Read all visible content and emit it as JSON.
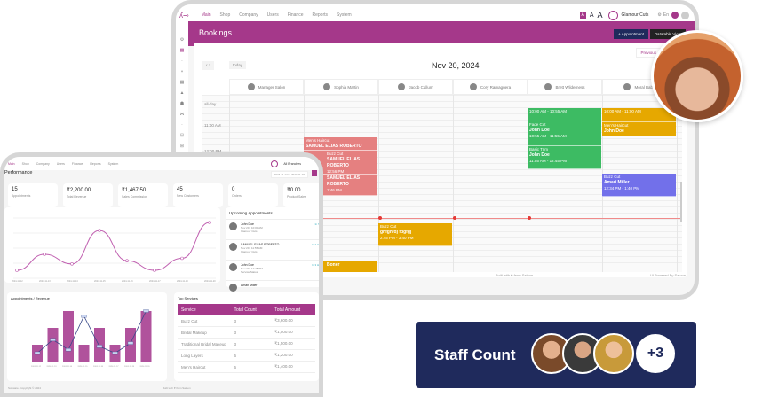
{
  "back": {
    "nav": [
      "Main",
      "Shop",
      "Company",
      "Users",
      "Finance",
      "Reports",
      "System"
    ],
    "font_sizes": [
      "A",
      "A",
      "A"
    ],
    "branch": "Glamour Cuts",
    "lang": "En",
    "title": "Bookings",
    "add_btn": "+ Appointment",
    "table_btn": "Datatable View",
    "prev_btn": "Previous",
    "today_btn": "today",
    "date": "Nov 20, 2024",
    "staff": [
      "Manager Salon",
      "Sophia Martin",
      "Jacob Callum",
      "Cory Ramaguera",
      "Brett Wilderness",
      "Moral Babu"
    ],
    "times": [
      "all-day",
      "11:00 AM",
      "12:00 PM"
    ],
    "events": [
      {
        "service": "",
        "name": "",
        "time": "10:00 AM - 10:55 AM",
        "color": "#3dbb63"
      },
      {
        "service": "Fade Cut",
        "name": "John Doe",
        "time": "10:55 AM - 11:55 AM",
        "color": "#3dbb63"
      },
      {
        "service": "Basic Trim",
        "name": "John Doe",
        "time": "11:55 AM - 12:45 PM",
        "color": "#3dbb63"
      },
      {
        "service": "",
        "name": "",
        "time": "10:00 AM - 11:00 AM",
        "color": "#e6a800"
      },
      {
        "service": "Men's Haircut",
        "name": "John Doe",
        "time": "",
        "color": "#e6a800"
      },
      {
        "service": "Men's Haircut",
        "name": "SAMUEL ELIAS ROBERTO",
        "time": "",
        "color": "#e58080"
      },
      {
        "service": "Buzz Cut",
        "name": "SAMUEL ELIAS ROBERTO",
        "time": "12:56 PM",
        "color": "#e58080"
      },
      {
        "service": "",
        "name": "SAMUEL ELIAS ROBERTO",
        "time": "1:46 PM",
        "color": "#e58080"
      },
      {
        "service": "Buzz Cut",
        "name": "Amari Miller",
        "time": "12:34 PM - 1:40 PM",
        "color": "#7270ea"
      },
      {
        "service": "Buzz Cut",
        "name": "ghfghfdj fdgfgj",
        "time": "2:45 PM - 3:40 PM",
        "color": "#e6a800"
      },
      {
        "service": "",
        "name": "Boner",
        "time": "",
        "color": "#e6a800"
      }
    ],
    "footer_mid": "Built with ♥ from Saloon",
    "footer_right": "UI Powered By Saloon"
  },
  "front": {
    "nav": [
      "Main",
      "Shop",
      "Company",
      "Users",
      "Finance",
      "Reports",
      "System"
    ],
    "branch": "All Branches",
    "title": "Performance",
    "date_range": "2024-11-14 to 2024-11-20",
    "stats": [
      {
        "value": "15",
        "label": "Appointments"
      },
      {
        "value": "₹2,200.00",
        "label": "Total Revenue"
      },
      {
        "value": "₹1,467.50",
        "label": "Sales Commission"
      },
      {
        "value": "45",
        "label": "New Customers"
      },
      {
        "value": "0",
        "label": "Orders"
      },
      {
        "value": "₹0.00",
        "label": "Product Sales"
      }
    ],
    "upcoming_title": "Upcoming Appointments",
    "upcoming": [
      {
        "name": "John Doe",
        "meta": "Nov 20 | 10:00 AM",
        "sub": "Glamour Cuts",
        "badge": "In Shop"
      },
      {
        "name": "SAMUEL ELIAS ROBERTO",
        "meta": "Nov 20 | 11:55 AM",
        "sub": "Glamour Cuts",
        "badge": "In 2 Hours"
      },
      {
        "name": "John Doe",
        "meta": "Nov 20 | 12:45 PM",
        "sub": "Service Status",
        "badge": "In 3 Hours"
      },
      {
        "name": "Amari Miller",
        "meta": "",
        "sub": "",
        "badge": ""
      }
    ],
    "line_chart": {
      "x": [
        "2024-11-12",
        "2024-11-13",
        "2024-11-14",
        "2024-11-15",
        "2024-11-16",
        "2024-11-17",
        "2024-11-19",
        "2024-11-20"
      ],
      "y": [
        1,
        3,
        1.8,
        6,
        2.2,
        1,
        2.5,
        7
      ]
    },
    "bar_title": "Appointments / Revenue",
    "bar_chart": {
      "x": [
        "2024-11-12",
        "2024-11-13",
        "2024-11-14",
        "2024-11-15",
        "2024-11-16",
        "2024-11-17",
        "2024-11-19",
        "2024-11-20"
      ],
      "bars": [
        1,
        2,
        3,
        1,
        2,
        1,
        2,
        3
      ],
      "line": [
        0.5,
        1.3,
        0.7,
        2.7,
        0.9,
        0.5,
        1.1,
        3
      ]
    },
    "services_title": "Top Services",
    "services_headers": [
      "Service",
      "Total Count",
      "Total Amount"
    ],
    "services": [
      [
        "Buzz Cut",
        "3",
        "₹3,600.00"
      ],
      [
        "Bridal Makeup",
        "3",
        "₹1,500.00"
      ],
      [
        "Traditional Bridal Makeup",
        "3",
        "₹1,500.00"
      ],
      [
        "Long Layers",
        "6",
        "₹1,200.00"
      ],
      [
        "Men's Haircut",
        "6",
        "₹1,400.00"
      ]
    ],
    "footer_left": "Software. Copyright © 2024",
    "footer_mid": "Built with ♥ from Saloon"
  },
  "staff_card": {
    "label": "Staff Count",
    "more": "+3",
    "bg": "#1f2a5c"
  },
  "accent": "#a5388a"
}
